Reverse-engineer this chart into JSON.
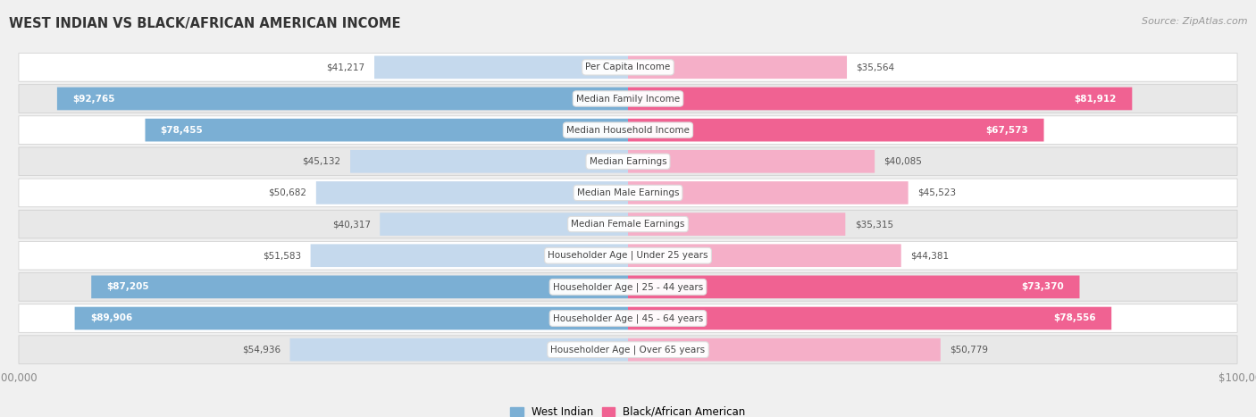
{
  "title": "WEST INDIAN VS BLACK/AFRICAN AMERICAN INCOME",
  "source": "Source: ZipAtlas.com",
  "categories": [
    "Per Capita Income",
    "Median Family Income",
    "Median Household Income",
    "Median Earnings",
    "Median Male Earnings",
    "Median Female Earnings",
    "Householder Age | Under 25 years",
    "Householder Age | 25 - 44 years",
    "Householder Age | 45 - 64 years",
    "Householder Age | Over 65 years"
  ],
  "west_indian": [
    41217,
    92765,
    78455,
    45132,
    50682,
    40317,
    51583,
    87205,
    89906,
    54936
  ],
  "black_african": [
    35564,
    81912,
    67573,
    40085,
    45523,
    35315,
    44381,
    73370,
    78556,
    50779
  ],
  "west_indian_labels": [
    "$41,217",
    "$92,765",
    "$78,455",
    "$45,132",
    "$50,682",
    "$40,317",
    "$51,583",
    "$87,205",
    "$89,906",
    "$54,936"
  ],
  "black_african_labels": [
    "$35,564",
    "$81,912",
    "$67,573",
    "$40,085",
    "$45,523",
    "$35,315",
    "$44,381",
    "$73,370",
    "$78,556",
    "$50,779"
  ],
  "max_value": 100000,
  "west_indian_color_dark": "#7bafd4",
  "west_indian_color_light": "#c5d9ed",
  "black_african_color_dark": "#f06292",
  "black_african_color_light": "#f5afc8",
  "bg_color": "#f0f0f0",
  "row_bg_light": "#ffffff",
  "row_bg_dark": "#e8e8e8",
  "label_color_white": "#ffffff",
  "label_color_dark": "#555555",
  "center_label_color": "#444444",
  "axis_label_color": "#888888",
  "title_color": "#333333",
  "source_color": "#999999",
  "wi_large_threshold": 65000,
  "ba_large_threshold": 60000
}
